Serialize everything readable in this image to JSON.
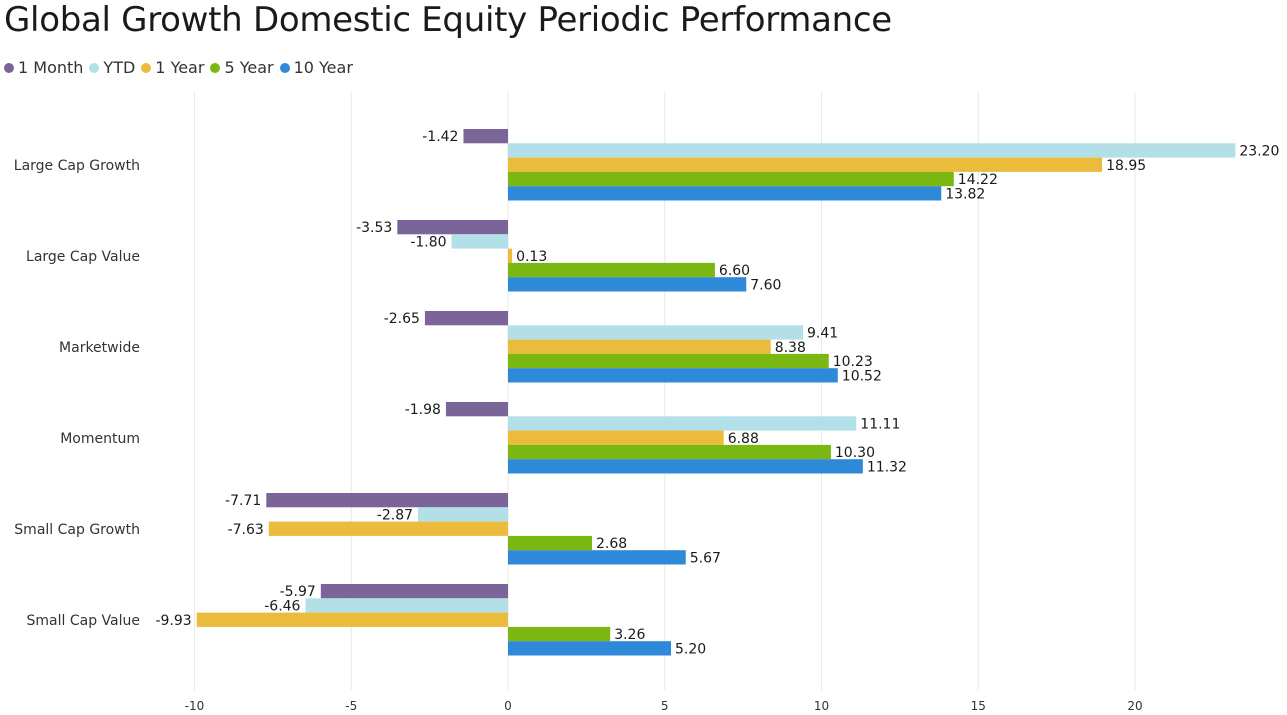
{
  "chart_data": {
    "type": "bar",
    "orientation": "horizontal",
    "title": "Global Growth Domestic Equity Periodic Performance",
    "categories": [
      "Large Cap Growth",
      "Large Cap Value",
      "Marketwide",
      "Momentum",
      "Small Cap Growth",
      "Small Cap Value"
    ],
    "series": [
      {
        "name": "1 Month",
        "color": "#7b6497",
        "values": [
          -1.42,
          -3.53,
          -2.65,
          -1.98,
          -7.71,
          -5.97
        ]
      },
      {
        "name": "YTD",
        "color": "#b3dfe8",
        "values": [
          23.2,
          -1.8,
          9.41,
          11.11,
          -2.87,
          -6.46
        ]
      },
      {
        "name": "1 Year",
        "color": "#ebbb3c",
        "values": [
          18.95,
          0.13,
          8.38,
          6.88,
          -7.63,
          -9.93
        ]
      },
      {
        "name": "5 Year",
        "color": "#7ab710",
        "values": [
          14.22,
          6.6,
          10.23,
          10.3,
          2.68,
          3.26
        ]
      },
      {
        "name": "10 Year",
        "color": "#2e8ad8",
        "values": [
          13.82,
          7.6,
          10.52,
          11.32,
          5.67,
          5.2
        ]
      }
    ],
    "xlim": [
      -10.4,
      24
    ],
    "xticks": [
      -10,
      -5,
      0,
      5,
      10,
      15,
      20
    ],
    "grid": true,
    "legend_position": "top-left",
    "value_format": "2 decimals"
  }
}
